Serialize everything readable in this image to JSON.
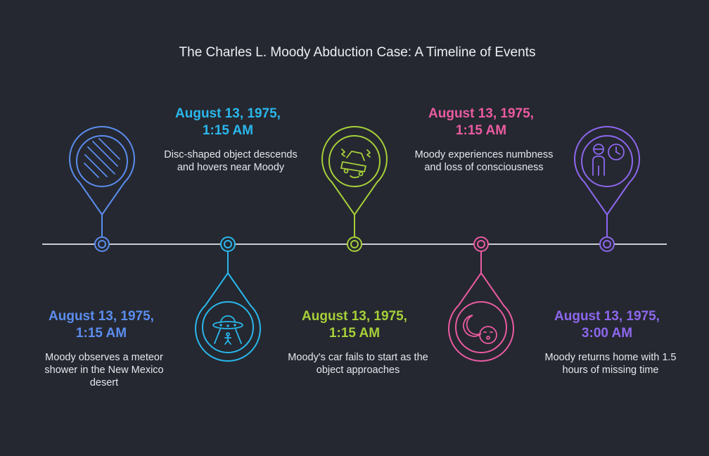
{
  "title": "The Charles L. Moody Abduction Case: A Timeline of Events",
  "events": [
    {
      "date_line1": "August 13, 1975,",
      "date_line2": "1:15 AM",
      "description": "Moody observes a meteor shower in the New Mexico desert",
      "color": "#5b8def",
      "icon": "meteor-shower-icon"
    },
    {
      "date_line1": "August 13, 1975,",
      "date_line2": "1:15 AM",
      "description": "Disc-shaped object descends and hovers near Moody",
      "color": "#2ab7ec",
      "icon": "ufo-beam-icon"
    },
    {
      "date_line1": "August 13, 1975,",
      "date_line2": "1:15 AM",
      "description": "Moody's car fails to start as the object approaches",
      "color": "#a6cf3a",
      "icon": "car-failure-icon"
    },
    {
      "date_line1": "August 13, 1975,",
      "date_line2": "1:15 AM",
      "description": "Moody experiences numbness and loss of consciousness",
      "color": "#ea5ba1",
      "icon": "unconscious-face-icon"
    },
    {
      "date_line1": "August 13, 1975,",
      "date_line2": "3:00 AM",
      "description": "Moody returns home with 1.5 hours of missing time",
      "color": "#8d67ee",
      "icon": "person-clock-icon"
    }
  ]
}
